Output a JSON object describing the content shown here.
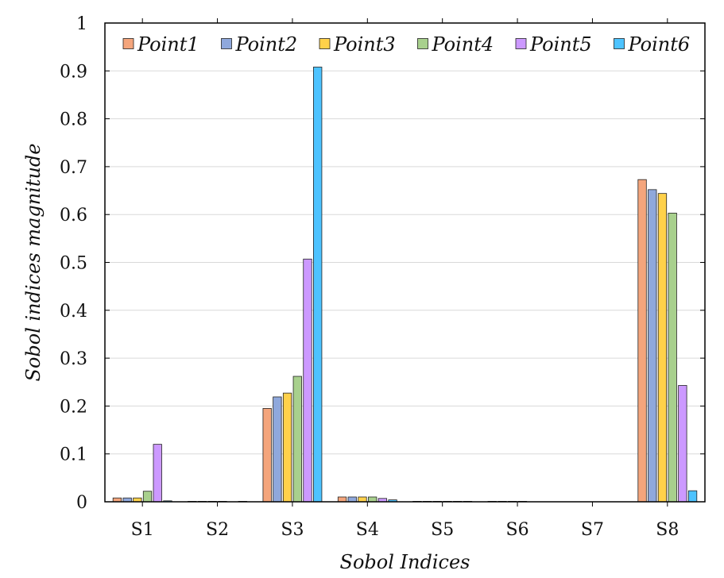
{
  "chart_data": {
    "type": "bar",
    "xlabel": "Sobol Indices",
    "ylabel": "Sobol indices magnitude",
    "categories": [
      "S1",
      "S2",
      "S3",
      "S4",
      "S5",
      "S6",
      "S7",
      "S8"
    ],
    "ylim": [
      0,
      1
    ],
    "yticks": [
      "0",
      "0.1",
      "0.2",
      "0.3",
      "0.4",
      "0.5",
      "0.6",
      "0.7",
      "0.8",
      "0.9",
      "1"
    ],
    "grid": true,
    "legend_position": "top",
    "series": [
      {
        "name": "Point1",
        "color": "#f4a57c",
        "values": [
          0.008,
          0.001,
          0.195,
          0.01,
          0.001,
          0.001,
          0.0,
          0.673
        ]
      },
      {
        "name": "Point2",
        "color": "#8fa8dc",
        "values": [
          0.008,
          0.001,
          0.219,
          0.01,
          0.001,
          0.001,
          0.0,
          0.652
        ]
      },
      {
        "name": "Point3",
        "color": "#ffd14a",
        "values": [
          0.008,
          0.001,
          0.227,
          0.01,
          0.001,
          0.001,
          0.0,
          0.644
        ]
      },
      {
        "name": "Point4",
        "color": "#a8d08d",
        "values": [
          0.022,
          0.001,
          0.262,
          0.01,
          0.001,
          0.001,
          0.0,
          0.603
        ]
      },
      {
        "name": "Point5",
        "color": "#cc99ff",
        "values": [
          0.12,
          0.0,
          0.507,
          0.007,
          0.001,
          0.0,
          0.0,
          0.243
        ]
      },
      {
        "name": "Point6",
        "color": "#4dc3ff",
        "values": [
          0.002,
          0.001,
          0.908,
          0.004,
          0.001,
          0.0,
          0.0,
          0.023
        ]
      }
    ]
  }
}
